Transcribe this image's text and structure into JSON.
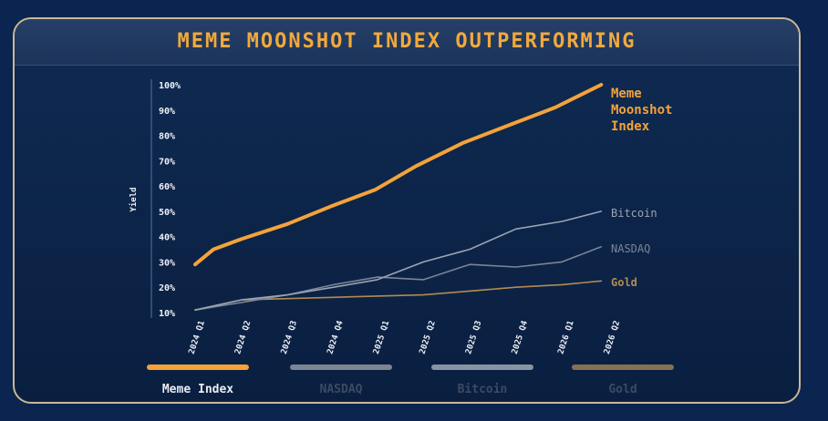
{
  "chart_data": {
    "type": "line",
    "title": "MEME MOONSHOT INDEX OUTPERFORMING",
    "ylabel": "Yield",
    "xlabel": "",
    "ylim": [
      10,
      100
    ],
    "y_ticks": [
      "10%",
      "20%",
      "30%",
      "40%",
      "50%",
      "60%",
      "70%",
      "80%",
      "90%",
      "100%"
    ],
    "categories": [
      "2024 Q1",
      "2024 Q2",
      "2024 Q3",
      "2024 Q4",
      "2025 Q1",
      "2025 Q2",
      "2025 Q3",
      "2025 Q4",
      "2026 Q1",
      "2026 Q2"
    ],
    "grid": false,
    "series": [
      {
        "name": "Meme Index",
        "end_label": [
          "Meme",
          "Moonshot",
          "Index"
        ],
        "color": "#f3a33a",
        "x": [
          0,
          0.4,
          1,
          2,
          2.95,
          3.9,
          4.8,
          5.8,
          6.8,
          7.8,
          8.8
        ],
        "values": [
          29,
          35,
          39,
          45,
          52,
          58.5,
          68,
          77,
          84,
          91,
          100
        ]
      },
      {
        "name": "Bitcoin",
        "end_label": [
          "Bitcoin"
        ],
        "color": "#9aa4b3",
        "x": [
          0,
          1,
          2,
          3,
          3.95,
          4.95,
          5.95,
          6.95,
          7.95,
          8.8
        ],
        "values": [
          11,
          15,
          17,
          20,
          23,
          30,
          35,
          43,
          46,
          50
        ]
      },
      {
        "name": "NASDAQ",
        "end_label": [
          "NASDAQ"
        ],
        "color": "#7b8596",
        "x": [
          0,
          1,
          2,
          3,
          3.95,
          4.95,
          5.95,
          6.95,
          7.95,
          8.8
        ],
        "values": [
          11,
          14,
          17,
          21,
          24,
          23,
          29,
          28,
          30,
          36
        ]
      },
      {
        "name": "Gold",
        "end_label": [
          "Gold"
        ],
        "color": "#b48a4f",
        "x": [
          0,
          1,
          2,
          3,
          3.95,
          4.95,
          5.95,
          6.95,
          7.95,
          8.8
        ],
        "values": [
          11,
          15,
          15.5,
          16,
          16.5,
          17,
          18.5,
          20,
          21,
          22.5
        ]
      }
    ],
    "legend": {
      "placement": "bottom",
      "items": [
        {
          "label": "Meme Index",
          "bar_color": "#f3a33a",
          "text_color": "#e9edf3"
        },
        {
          "label": "NASDAQ",
          "bar_color": "#7d8593",
          "text_color": "#3c4a63"
        },
        {
          "label": "Bitcoin",
          "bar_color": "#8a93a2",
          "text_color": "#3c4a63"
        },
        {
          "label": "Gold",
          "bar_color": "#857052",
          "text_color": "#3c4a63"
        }
      ]
    }
  }
}
